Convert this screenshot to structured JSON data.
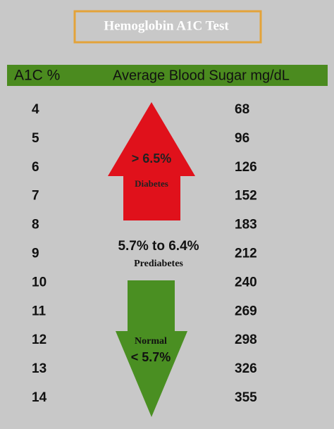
{
  "title": "Hemoglobin A1C Test",
  "table": {
    "header": [
      "A1C %",
      "Average Blood Sugar mg/dL"
    ],
    "rows": [
      [
        4,
        68
      ],
      [
        5,
        96
      ],
      [
        6,
        126
      ],
      [
        7,
        152
      ],
      [
        8,
        183
      ],
      [
        9,
        212
      ],
      [
        10,
        240
      ],
      [
        11,
        269
      ],
      [
        12,
        298
      ],
      [
        13,
        326
      ],
      [
        14,
        355
      ]
    ]
  },
  "ranges": {
    "diabetes": {
      "threshold": "> 6.5%",
      "label": "Diabetes"
    },
    "prediabetes": {
      "threshold": "5.7% to 6.4%",
      "label": "Prediabetes"
    },
    "normal": {
      "label": "Normal",
      "threshold": "< 5.7%"
    }
  }
}
